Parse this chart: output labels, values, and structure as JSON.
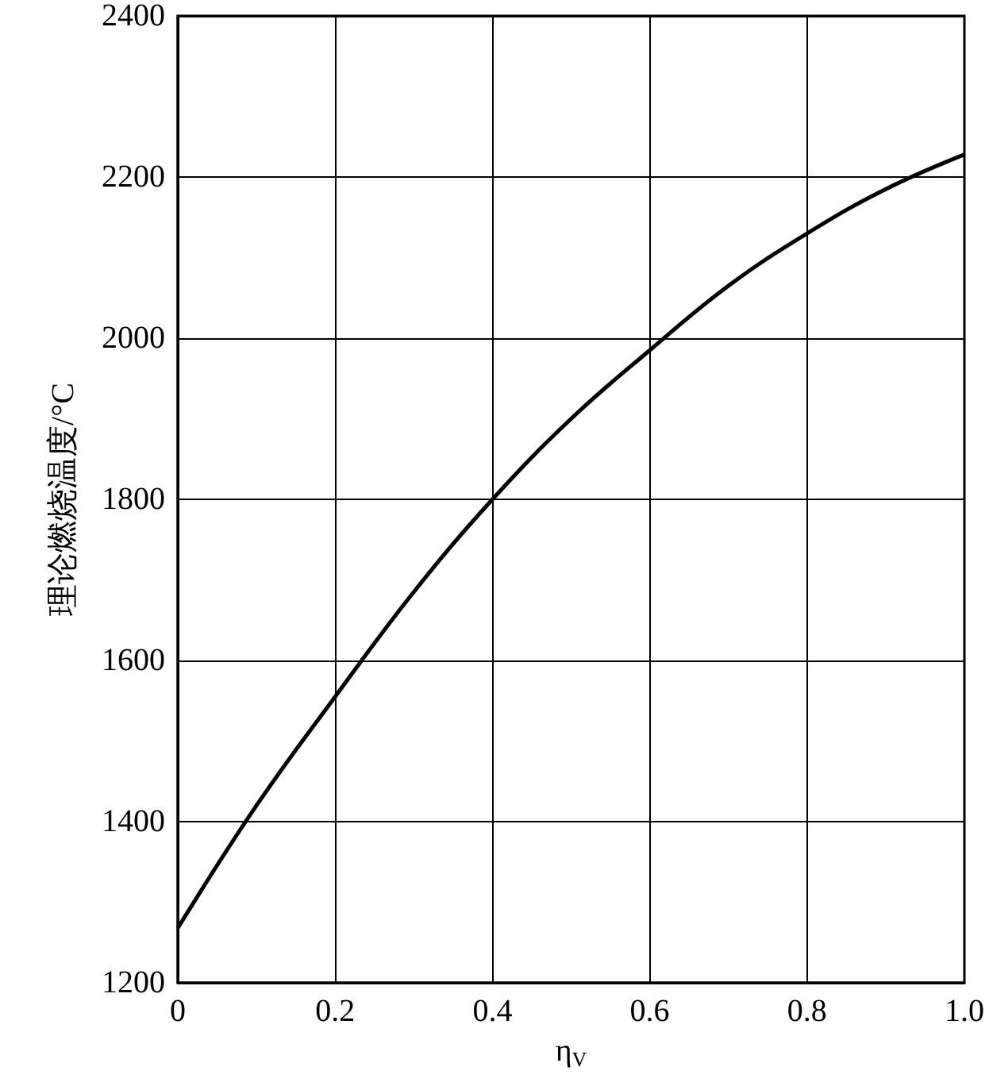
{
  "chart_data": {
    "type": "line",
    "xlabel": "η$_{V}$",
    "ylabel": "理论燃烧温度/°C",
    "x": [
      0,
      0.1,
      0.2,
      0.3,
      0.4,
      0.5,
      0.6,
      0.7,
      0.8,
      0.9,
      1.0
    ],
    "series": [
      {
        "color": "#000000",
        "values": [
          1268,
          1420,
          1555,
          1685,
          1800,
          1900,
          1985,
          2065,
          2130,
          2185,
          2228
        ]
      }
    ],
    "xlim": [
      0,
      1.0
    ],
    "xticks": [
      0,
      0.2,
      0.4,
      0.6,
      0.8,
      {
        "value": 1.0,
        "label": "1.0"
      }
    ],
    "ylim": [
      1200,
      2400
    ],
    "yticks": [
      1200,
      1400,
      1600,
      1800,
      2000,
      2200,
      2400
    ],
    "grid": true,
    "marker": "none",
    "line_style": "solid"
  }
}
